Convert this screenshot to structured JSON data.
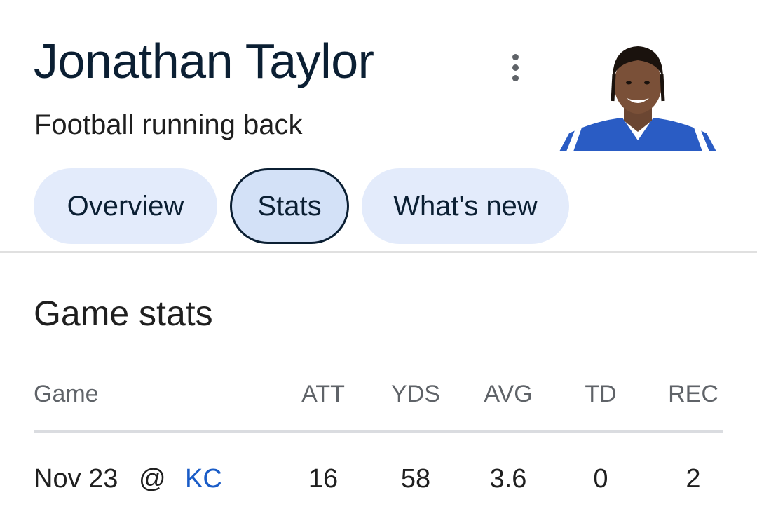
{
  "header": {
    "title": "Jonathan Taylor",
    "subtitle": "Football running back",
    "more_icon": "more-vert-icon"
  },
  "tabs": [
    {
      "label": "Overview",
      "active": false
    },
    {
      "label": "Stats",
      "active": true
    },
    {
      "label": "What's new",
      "active": false
    }
  ],
  "section": {
    "title": "Game stats"
  },
  "table": {
    "columns": [
      "Game",
      "ATT",
      "YDS",
      "AVG",
      "TD",
      "REC"
    ],
    "rows": [
      {
        "date": "Nov 23",
        "at": "@",
        "opponent": "KC",
        "att": "16",
        "yds": "58",
        "avg": "3.6",
        "td": "0",
        "rec": "2"
      }
    ]
  },
  "colors": {
    "title": "#0b1f33",
    "tab_bg": "#e3ebfb",
    "tab_active_bg": "#d3e1f7",
    "link": "#1a5cc7",
    "jersey": "#2a5cc4"
  }
}
